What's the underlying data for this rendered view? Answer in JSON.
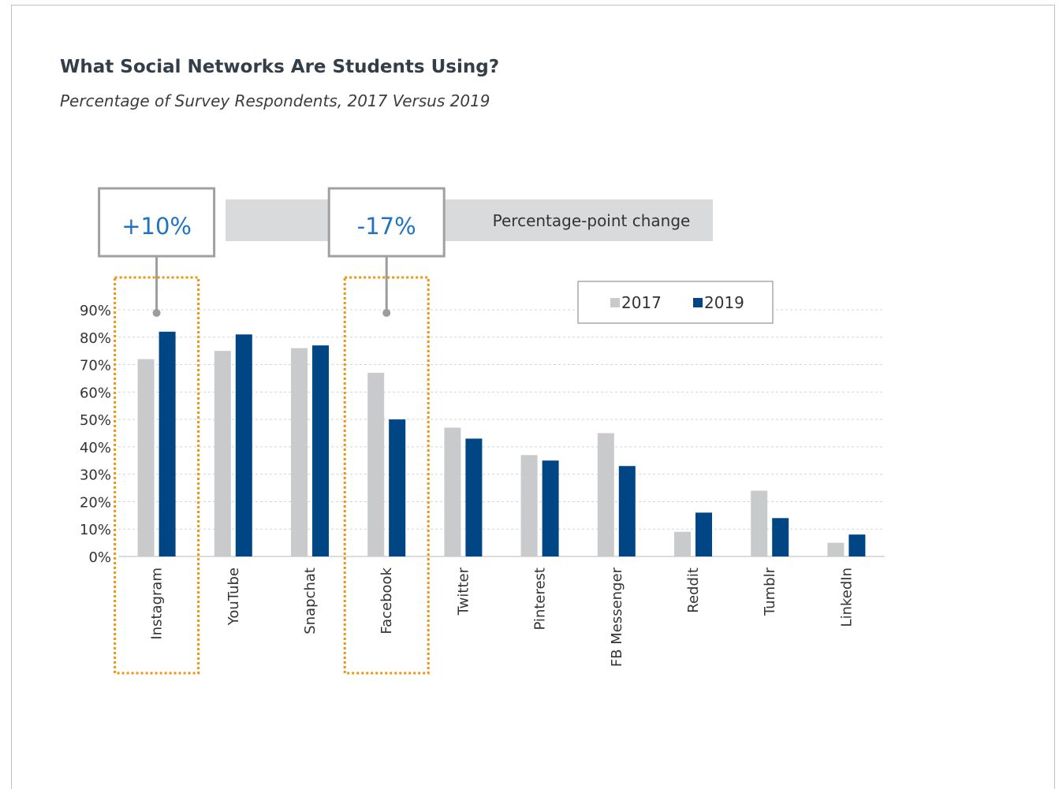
{
  "chart_data": {
    "type": "bar",
    "title": "What Social Networks Are Students Using?",
    "subtitle": "Percentage of Survey Respondents, 2017 Versus 2019",
    "categories": [
      "Instagram",
      "YouTube",
      "Snapchat",
      "Facebook",
      "Twitter",
      "Pinterest",
      "FB Messenger",
      "Reddit",
      "Tumblr",
      "LinkedIn"
    ],
    "series": [
      {
        "name": "2017",
        "color": "#c8cacc",
        "values": [
          72,
          75,
          76,
          67,
          47,
          37,
          45,
          9,
          24,
          5
        ]
      },
      {
        "name": "2019",
        "color": "#004684",
        "values": [
          82,
          81,
          77,
          50,
          43,
          35,
          33,
          16,
          14,
          8
        ]
      }
    ],
    "ylim": [
      0,
      90
    ],
    "yticks": [
      0,
      10,
      20,
      30,
      40,
      50,
      60,
      70,
      80,
      90
    ],
    "ytick_labels": [
      "0%",
      "10%",
      "20%",
      "30%",
      "40%",
      "50%",
      "60%",
      "70%",
      "80%",
      "90%"
    ],
    "grid": true,
    "legend_position": "top-right",
    "annotation_band_label": "Percentage-point change",
    "annotations": [
      {
        "category": "Instagram",
        "text": "+10%"
      },
      {
        "category": "Facebook",
        "text": "-17%"
      }
    ],
    "colors": {
      "highlight_border": "#f0930e",
      "callout_border": "#a0a0a0",
      "band_fill": "#d9dadb",
      "change_text": "#1f73c2"
    }
  }
}
